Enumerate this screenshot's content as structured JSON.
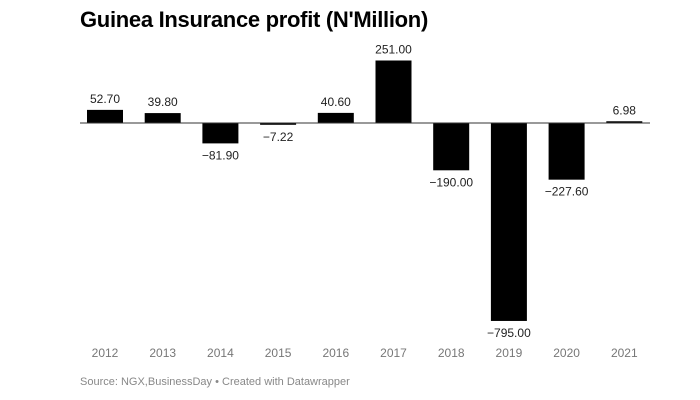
{
  "chart_data": {
    "type": "bar",
    "title": "Guinea Insurance profit (N'Million)",
    "categories": [
      "2012",
      "2013",
      "2014",
      "2015",
      "2016",
      "2017",
      "2018",
      "2019",
      "2020",
      "2021"
    ],
    "values": [
      52.7,
      39.8,
      -81.9,
      -7.22,
      40.6,
      251.0,
      -190.0,
      -795.0,
      -227.6,
      6.98
    ],
    "data_labels": [
      "52.70",
      "39.80",
      "−81.90",
      "−7.22",
      "40.60",
      "251.00",
      "−190.00",
      "−795.00",
      "−227.60",
      "6.98"
    ],
    "xlabel": "",
    "ylabel": "",
    "grid": false,
    "bar_color": "#000000"
  },
  "footer": {
    "source": "Source: NGX,BusinessDay • Created with Datawrapper"
  }
}
